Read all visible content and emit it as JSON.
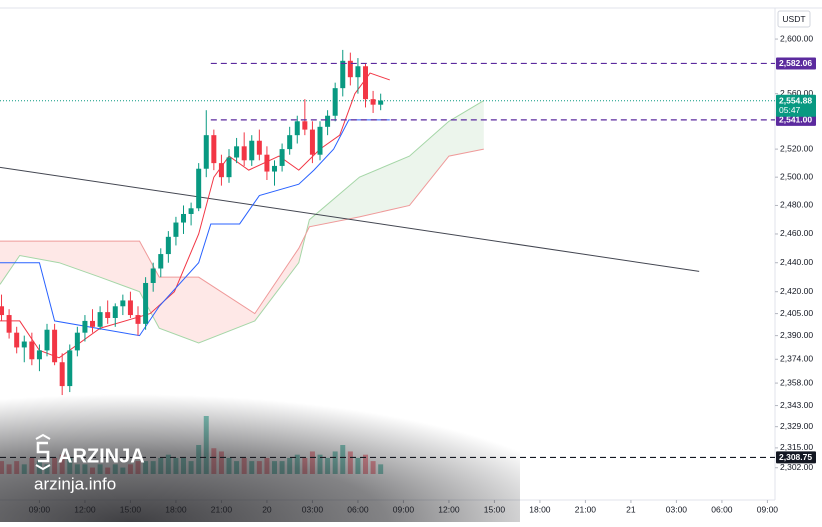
{
  "chart_data": {
    "type": "candlestick",
    "currency": "USDT",
    "log_scale": true,
    "up_color": "#089981",
    "down_color": "#f23645",
    "ylim": [
      2281,
      2629
    ],
    "yticks": [
      {
        "value": 2600,
        "label": "2,600.00"
      },
      {
        "value": 2560,
        "label": "2,560.00"
      },
      {
        "value": 2520,
        "label": "2,520.00"
      },
      {
        "value": 2500,
        "label": "2,500.00"
      },
      {
        "value": 2480,
        "label": "2,480.00"
      },
      {
        "value": 2460,
        "label": "2,460.00"
      },
      {
        "value": 2440,
        "label": "2,440.00"
      },
      {
        "value": 2420,
        "label": "2,420.00"
      },
      {
        "value": 2405,
        "label": "2,405.00"
      },
      {
        "value": 2390,
        "label": "2,390.00"
      },
      {
        "value": 2374,
        "label": "2,374.00"
      },
      {
        "value": 2358,
        "label": "2,358.00"
      },
      {
        "value": 2343,
        "label": "2,343.00"
      },
      {
        "value": 2329,
        "label": "2,329.00"
      },
      {
        "value": 2315,
        "label": "2,315.00"
      },
      {
        "value": 2302,
        "label": "2,302.00"
      }
    ],
    "xlim": [
      -2.6,
      48.5
    ],
    "xticks": [
      {
        "value": 0,
        "label": "09:00"
      },
      {
        "value": 3,
        "label": "12:00"
      },
      {
        "value": 6,
        "label": "15:00"
      },
      {
        "value": 9,
        "label": "18:00"
      },
      {
        "value": 12,
        "label": "21:00"
      },
      {
        "value": 15,
        "label": "20"
      },
      {
        "value": 18,
        "label": "03:00"
      },
      {
        "value": 21,
        "label": "06:00"
      },
      {
        "value": 24,
        "label": "09:00"
      },
      {
        "value": 27,
        "label": "12:00"
      },
      {
        "value": 30,
        "label": "15:00"
      },
      {
        "value": 33,
        "label": "18:00"
      },
      {
        "value": 36,
        "label": "21:00"
      },
      {
        "value": 39,
        "label": "21"
      },
      {
        "value": 42,
        "label": "03:00"
      },
      {
        "value": 45,
        "label": "06:00"
      },
      {
        "value": 48,
        "label": "09:00"
      }
    ],
    "x": [
      -2.5,
      -2,
      -1.5,
      -1,
      -0.5,
      0,
      0.5,
      1,
      1.5,
      2,
      2.5,
      3,
      3.5,
      4,
      4.5,
      5,
      5.5,
      6,
      6.5,
      7,
      7.5,
      8,
      8.5,
      9,
      9.5,
      10,
      10.5,
      11,
      11.5,
      12,
      12.5,
      13,
      13.5,
      14,
      14.5,
      15,
      15.5,
      16,
      16.5,
      17,
      17.5,
      18,
      18.5,
      19,
      19.5,
      20,
      20.5,
      21,
      21.5,
      22,
      22.5
    ],
    "open": [
      2410,
      2404,
      2392,
      2382,
      2386,
      2374,
      2380,
      2394,
      2372,
      2356,
      2380,
      2392,
      2400,
      2396,
      2406,
      2402,
      2410,
      2414,
      2404,
      2398,
      2426,
      2436,
      2446,
      2458,
      2468,
      2474,
      2478,
      2506,
      2530,
      2510,
      2500,
      2514,
      2522,
      2512,
      2526,
      2516,
      2504,
      2508,
      2520,
      2530,
      2540,
      2534,
      2516,
      2536,
      2544,
      2564,
      2584,
      2572,
      2580,
      2556,
      2552
    ],
    "high": [
      2418,
      2408,
      2396,
      2390,
      2392,
      2384,
      2398,
      2398,
      2378,
      2384,
      2396,
      2404,
      2408,
      2410,
      2414,
      2412,
      2418,
      2420,
      2410,
      2430,
      2440,
      2450,
      2462,
      2472,
      2480,
      2482,
      2510,
      2548,
      2534,
      2516,
      2520,
      2528,
      2532,
      2530,
      2534,
      2522,
      2512,
      2524,
      2536,
      2544,
      2556,
      2540,
      2540,
      2548,
      2568,
      2592,
      2590,
      2586,
      2582,
      2562,
      2560
    ],
    "low": [
      2400,
      2388,
      2378,
      2372,
      2370,
      2366,
      2376,
      2370,
      2350,
      2352,
      2376,
      2386,
      2392,
      2394,
      2398,
      2396,
      2404,
      2402,
      2390,
      2394,
      2420,
      2430,
      2440,
      2452,
      2460,
      2466,
      2476,
      2500,
      2505,
      2494,
      2496,
      2510,
      2508,
      2508,
      2512,
      2498,
      2494,
      2504,
      2516,
      2524,
      2530,
      2510,
      2512,
      2530,
      2540,
      2558,
      2566,
      2560,
      2550,
      2546,
      2548
    ],
    "close": [
      2404,
      2392,
      2382,
      2386,
      2374,
      2380,
      2394,
      2372,
      2356,
      2380,
      2392,
      2400,
      2396,
      2406,
      2402,
      2410,
      2414,
      2404,
      2398,
      2426,
      2436,
      2446,
      2458,
      2468,
      2474,
      2478,
      2506,
      2530,
      2510,
      2500,
      2514,
      2522,
      2512,
      2526,
      2516,
      2504,
      2508,
      2520,
      2530,
      2540,
      2534,
      2516,
      2536,
      2544,
      2564,
      2584,
      2572,
      2580,
      2556,
      2552,
      2555
    ],
    "volume": [
      4,
      3,
      4,
      3,
      5,
      4,
      3,
      5,
      6,
      5,
      3,
      3,
      2,
      3,
      2,
      3,
      2,
      3,
      4,
      4,
      4,
      5,
      6,
      5,
      5,
      4,
      9,
      18,
      8,
      7,
      5,
      4,
      5,
      4,
      4,
      5,
      4,
      4,
      5,
      6,
      5,
      7,
      6,
      5,
      7,
      9,
      7,
      5,
      6,
      4,
      3
    ],
    "overlays": [
      {
        "color": "#f23645",
        "x": [
          -2.6,
          -1.3,
          0,
          1.3,
          4.0,
          7.3,
          8.9,
          10.5,
          11.5,
          12.5,
          13.8,
          15.8,
          17.1,
          18.5,
          19.8,
          20.8,
          21.8,
          23.1
        ],
        "values": [
          2400,
          2400,
          2380,
          2375,
          2395,
          2405,
          2420,
          2460,
          2500,
          2515,
          2505,
          2515,
          2505,
          2520,
          2530,
          2560,
          2575,
          2570
        ]
      },
      {
        "color": "#2962ff",
        "x": [
          -2.6,
          0,
          1.0,
          6.6,
          7.9,
          10.5,
          11.3,
          13.2,
          14.5,
          17.1,
          18.1,
          19.4,
          20.4,
          23.1
        ],
        "values": [
          2440,
          2440,
          2400,
          2390,
          2410,
          2440,
          2467,
          2467,
          2487,
          2495,
          2505,
          2520,
          2541,
          2541
        ]
      }
    ],
    "cloud": {
      "x": [
        -2.6,
        -1.3,
        1.3,
        4.0,
        6.6,
        7.9,
        10.5,
        14.2,
        17.1,
        17.8,
        21.1,
        24.4,
        27.0,
        29.3
      ],
      "span_a": [
        2425,
        2445,
        2440,
        2430,
        2420,
        2395,
        2385,
        2400,
        2440,
        2470,
        2500,
        2515,
        2540,
        2555
      ],
      "span_b": [
        2455,
        2455,
        2455,
        2455,
        2455,
        2430,
        2430,
        2405,
        2450,
        2465,
        2472,
        2480,
        2515,
        2520
      ],
      "span_a_color": "#a5d6a7",
      "span_b_color": "#ef9a9a",
      "up_fill": "rgba(67,160,71,0.10)",
      "down_fill": "rgba(244,67,54,0.12)"
    },
    "trendline": {
      "color": "#434651",
      "x": [
        -2.6,
        43.5
      ],
      "values": [
        2507,
        2434
      ]
    },
    "price_lines": [
      {
        "value": 2582.06,
        "label": "2,582.06",
        "color": "#5b2a9e",
        "x_start": 11.3,
        "dash": true
      },
      {
        "value": 2541.0,
        "label": "2,541.00",
        "color": "#5b2a9e",
        "x_start": 11.3,
        "dash": true
      },
      {
        "value": 2308.75,
        "label": "2,308.75",
        "color": "#131722",
        "x_start": -2.6,
        "dash": true
      }
    ],
    "last_price": {
      "value": 2554.88,
      "label": "2,554.88",
      "countdown": "05:47",
      "color": "#089981"
    }
  },
  "watermark": {
    "brand": "ARZINJA",
    "site": "arzinja.info"
  }
}
